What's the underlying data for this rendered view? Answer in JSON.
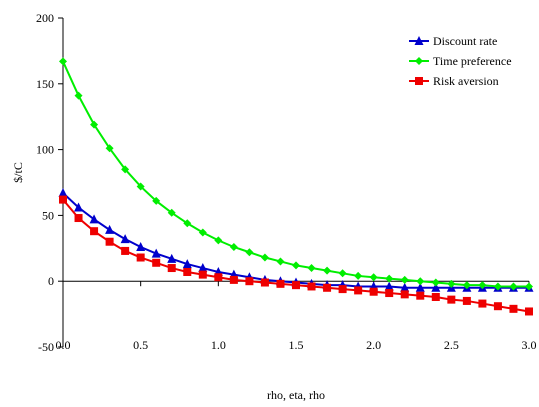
{
  "chart_data": {
    "type": "line",
    "title": "",
    "xlabel": "rho, eta, rho",
    "ylabel": "$/tC",
    "xlim": [
      0,
      3
    ],
    "ylim": [
      -50,
      200
    ],
    "xticks": [
      "0.0",
      "0.5",
      "1.0",
      "1.5",
      "2.0",
      "2.5",
      "3.0"
    ],
    "yticks": [
      "-50",
      "0",
      "50",
      "100",
      "150",
      "200"
    ],
    "grid": false,
    "legend_position": "top-right",
    "x": [
      0.0,
      0.1,
      0.2,
      0.3,
      0.4,
      0.5,
      0.6,
      0.7,
      0.8,
      0.9,
      1.0,
      1.1,
      1.2,
      1.3,
      1.4,
      1.5,
      1.6,
      1.7,
      1.8,
      1.9,
      2.0,
      2.1,
      2.2,
      2.3,
      2.4,
      2.5,
      2.6,
      2.7,
      2.8,
      2.9,
      3.0
    ],
    "series": [
      {
        "name": "Discount rate",
        "color": "#0000cc",
        "marker": "triangle",
        "values": [
          67,
          56,
          47,
          39,
          32,
          26,
          21,
          17,
          13,
          10,
          7,
          5,
          3,
          1,
          0,
          -1,
          -2,
          -3,
          -3,
          -4,
          -4,
          -4,
          -5,
          -5,
          -5,
          -5,
          -5,
          -5,
          -5,
          -5,
          -5
        ]
      },
      {
        "name": "Time preference",
        "color": "#00ee00",
        "marker": "diamond",
        "values": [
          167,
          141,
          119,
          101,
          85,
          72,
          61,
          52,
          44,
          37,
          31,
          26,
          22,
          18,
          15,
          12,
          10,
          8,
          6,
          4,
          3,
          2,
          1,
          0,
          -1,
          -2,
          -3,
          -3,
          -4,
          -4,
          -4
        ]
      },
      {
        "name": "Risk aversion",
        "color": "#ee0000",
        "marker": "square",
        "values": [
          62,
          48,
          38,
          30,
          23,
          18,
          14,
          10,
          7,
          5,
          3,
          1,
          0,
          -1,
          -2,
          -3,
          -4,
          -5,
          -6,
          -7,
          -8,
          -9,
          -10,
          -11,
          -12,
          -14,
          -15,
          -17,
          -19,
          -21,
          -23
        ]
      }
    ]
  }
}
